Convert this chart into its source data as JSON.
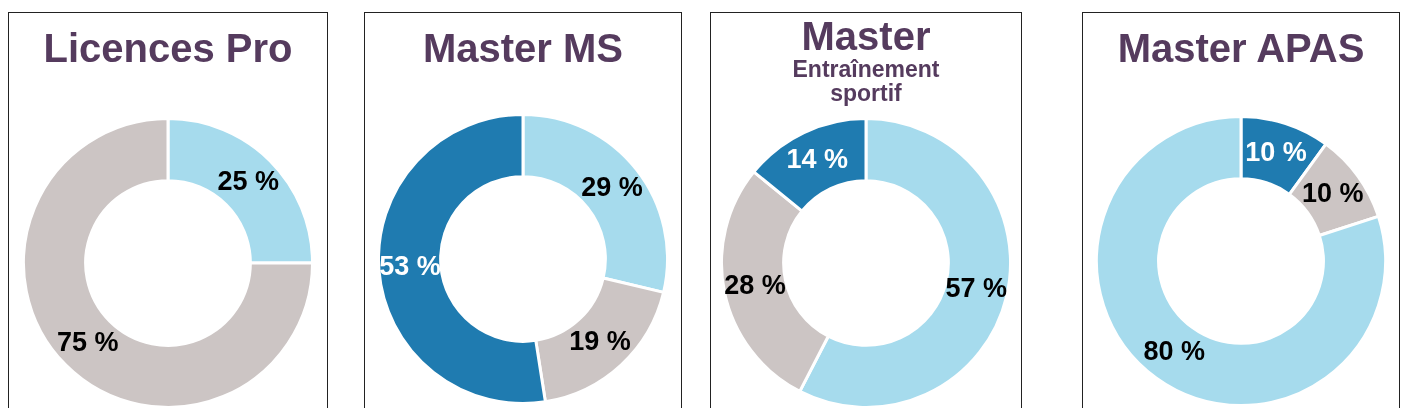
{
  "chart_data": [
    {
      "type": "donut",
      "title": "Licences Pro",
      "categories": [
        null,
        null
      ],
      "values": [
        25,
        75
      ],
      "colors": [
        "#a6dbed",
        "#ccc5c4"
      ],
      "value_labels": [
        "25 %",
        "75 %"
      ]
    },
    {
      "type": "donut",
      "title": "Master MS",
      "categories": [
        null,
        null,
        null
      ],
      "values": [
        29,
        19,
        53
      ],
      "colors": [
        "#a6dbed",
        "#ccc5c4",
        "#1f7bb0"
      ],
      "value_labels": [
        "29 %",
        "19 %",
        "53 %"
      ]
    },
    {
      "type": "donut",
      "title": "Master",
      "subtitle": "Entraînement sportif",
      "categories": [
        null,
        null,
        null
      ],
      "values": [
        57,
        28,
        14
      ],
      "colors": [
        "#a6dbed",
        "#ccc5c4",
        "#1f7bb0"
      ],
      "value_labels": [
        "57 %",
        "28 %",
        "14 %"
      ]
    },
    {
      "type": "donut",
      "title": "Master APAS",
      "categories": [
        null,
        null,
        null
      ],
      "values": [
        10,
        10,
        80
      ],
      "colors": [
        "#1f7bb0",
        "#ccc5c4",
        "#a6dbed"
      ],
      "value_labels": [
        "10 %",
        "10 %",
        "80 %"
      ]
    }
  ]
}
